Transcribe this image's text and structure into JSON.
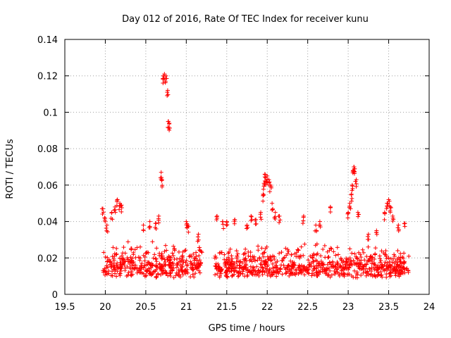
{
  "chart_data": {
    "type": "scatter",
    "title": "Day 012 of 2016, Rate Of TEC Index for receiver kunu",
    "xlabel": "GPS time / hours",
    "ylabel": "ROTI / TECUs",
    "xlim": [
      19.5,
      24
    ],
    "ylim": [
      0,
      0.14
    ],
    "xticks": [
      "19.5",
      "20",
      "20.5",
      "21",
      "21.5",
      "22",
      "22.5",
      "23",
      "23.5",
      "24"
    ],
    "yticks": [
      "0",
      "0.02",
      "0.04",
      "0.06",
      "0.08",
      "0.1",
      "0.12",
      "0.14"
    ],
    "grid": true,
    "marker": "+",
    "series_color": "#ff0000",
    "background_band": {
      "x": [
        19.97,
        23.75
      ],
      "y": [
        0.006,
        0.028
      ]
    },
    "clusters": [
      {
        "x": [
          19.97,
          21.2
        ],
        "y": [
          0.005,
          0.032
        ]
      },
      {
        "x": [
          21.35,
          23.75
        ],
        "y": [
          0.005,
          0.03
        ]
      }
    ],
    "peaks": [
      [
        19.97,
        0.047
      ],
      [
        19.99,
        0.042
      ],
      [
        20.02,
        0.038
      ],
      [
        20.08,
        0.045
      ],
      [
        20.12,
        0.048
      ],
      [
        20.15,
        0.052
      ],
      [
        20.18,
        0.05
      ],
      [
        20.2,
        0.049
      ],
      [
        20.47,
        0.038
      ],
      [
        20.55,
        0.04
      ],
      [
        20.62,
        0.039
      ],
      [
        20.66,
        0.043
      ],
      [
        20.69,
        0.067
      ],
      [
        20.7,
        0.063
      ],
      [
        20.72,
        0.12
      ],
      [
        20.73,
        0.121
      ],
      [
        20.75,
        0.12
      ],
      [
        20.77,
        0.112
      ],
      [
        20.78,
        0.095
      ],
      [
        20.79,
        0.094
      ],
      [
        21.0,
        0.04
      ],
      [
        21.02,
        0.038
      ],
      [
        21.15,
        0.033
      ],
      [
        21.38,
        0.043
      ],
      [
        21.45,
        0.04
      ],
      [
        21.5,
        0.04
      ],
      [
        21.6,
        0.041
      ],
      [
        21.75,
        0.038
      ],
      [
        21.8,
        0.043
      ],
      [
        21.86,
        0.041
      ],
      [
        21.92,
        0.045
      ],
      [
        21.95,
        0.055
      ],
      [
        21.96,
        0.061
      ],
      [
        21.97,
        0.066
      ],
      [
        21.98,
        0.064
      ],
      [
        22.0,
        0.065
      ],
      [
        22.02,
        0.063
      ],
      [
        22.04,
        0.06
      ],
      [
        22.06,
        0.05
      ],
      [
        22.1,
        0.045
      ],
      [
        22.15,
        0.043
      ],
      [
        22.45,
        0.043
      ],
      [
        22.6,
        0.038
      ],
      [
        22.65,
        0.04
      ],
      [
        22.78,
        0.048
      ],
      [
        23.0,
        0.045
      ],
      [
        23.02,
        0.05
      ],
      [
        23.04,
        0.055
      ],
      [
        23.05,
        0.06
      ],
      [
        23.06,
        0.068
      ],
      [
        23.07,
        0.07
      ],
      [
        23.08,
        0.069
      ],
      [
        23.1,
        0.063
      ],
      [
        23.12,
        0.045
      ],
      [
        23.25,
        0.033
      ],
      [
        23.35,
        0.035
      ],
      [
        23.45,
        0.045
      ],
      [
        23.48,
        0.05
      ],
      [
        23.5,
        0.052
      ],
      [
        23.52,
        0.048
      ],
      [
        23.55,
        0.043
      ],
      [
        23.62,
        0.038
      ],
      [
        23.7,
        0.039
      ]
    ]
  }
}
